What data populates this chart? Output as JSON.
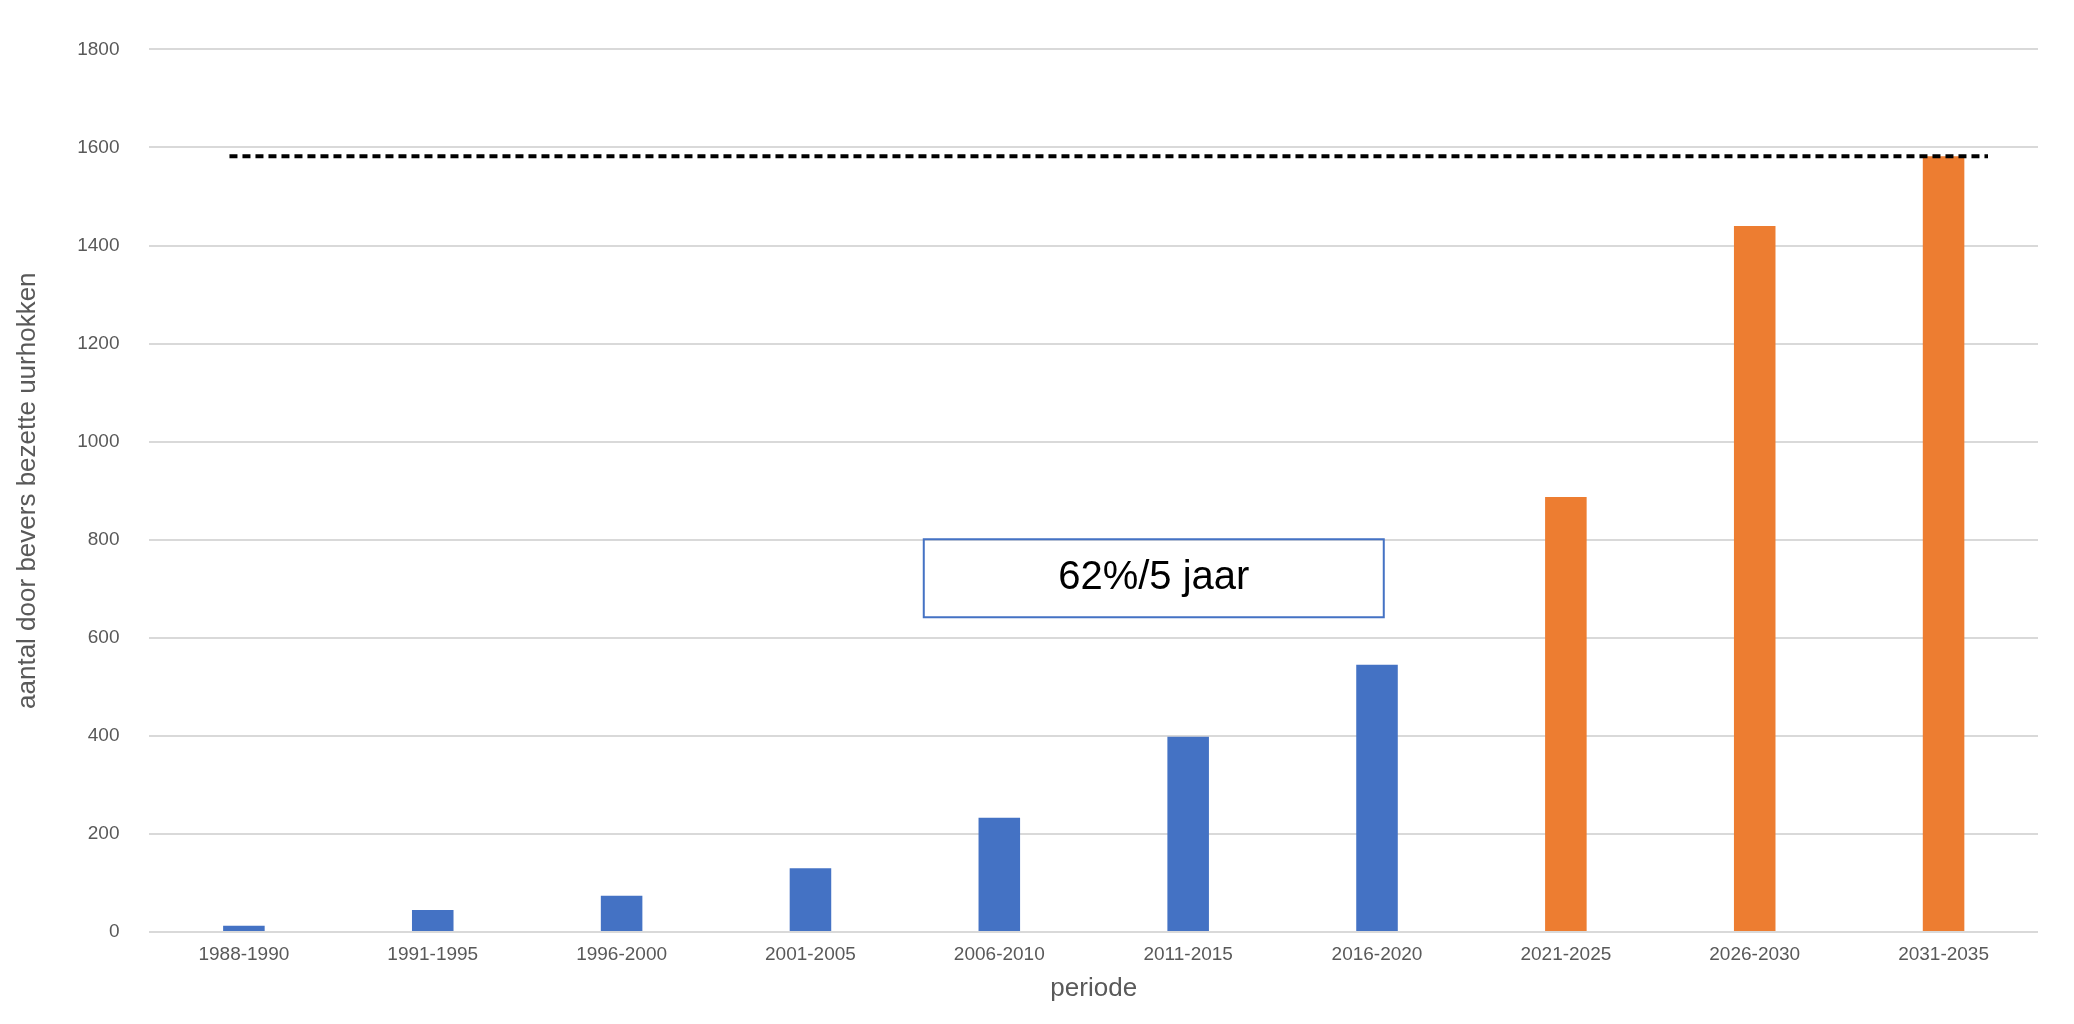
{
  "chart_data": {
    "type": "bar",
    "xlabel": "periode",
    "ylabel": "aantal door bevers bezette uurhokken",
    "categories": [
      "1988-1990",
      "1991-1995",
      "1996-2000",
      "2001-2005",
      "2006-2010",
      "2011-2015",
      "2016-2020",
      "2021-2025",
      "2026-2030",
      "2031-2035"
    ],
    "values": [
      13,
      45,
      74,
      130,
      233,
      398,
      545,
      887,
      1440,
      1582
    ],
    "colors": [
      "#4472c4",
      "#4472c4",
      "#4472c4",
      "#4472c4",
      "#4472c4",
      "#4472c4",
      "#4472c4",
      "#ed7d31",
      "#ed7d31",
      "#ed7d31"
    ],
    "ylim": [
      0,
      1800
    ],
    "yticks": [
      0,
      200,
      400,
      600,
      800,
      1000,
      1200,
      1400,
      1600,
      1800
    ],
    "grid": "y",
    "legend": false,
    "ref_lines": [
      {
        "axis": "y",
        "value": 1582,
        "color": "#000000",
        "line_style": "dashed"
      }
    ],
    "annotations": [
      "62%/5 jaar"
    ]
  }
}
